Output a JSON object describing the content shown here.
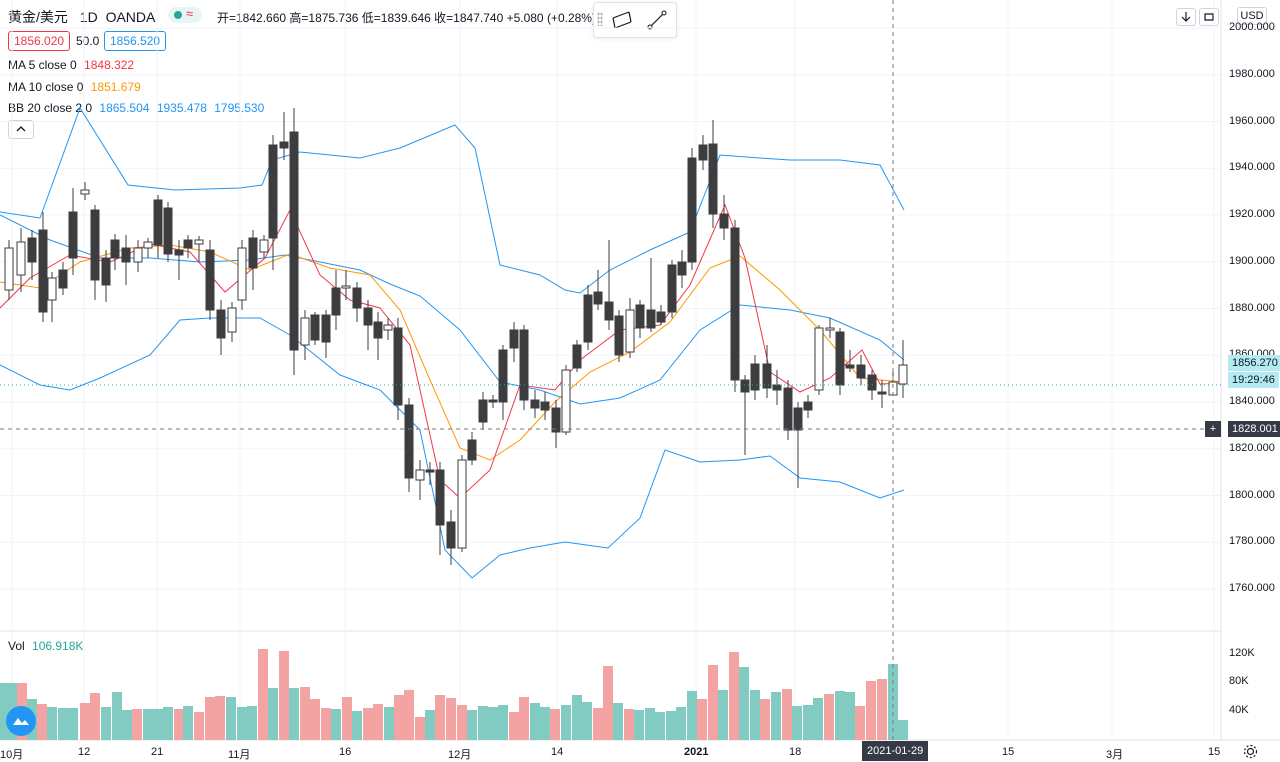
{
  "header": {
    "symbol": "黄金/美元",
    "interval": "1D",
    "exchange": "OANDA",
    "ohlc": "开=1842.660 高=1875.736 低=1839.646 收=1847.740 +5.080 (+0.28%)"
  },
  "quote": {
    "bid": "1856.020",
    "spread": "50.0",
    "ask": "1856.520"
  },
  "indicators": {
    "ma5_label": "MA 5 close 0",
    "ma5_value": "1848.322",
    "ma10_label": "MA 10 close 0",
    "ma10_value": "1851.679",
    "bb_label": "BB 20 close 2 0",
    "bb_mid": "1865.504",
    "bb_upper": "1935.478",
    "bb_lower": "1795.530"
  },
  "volume": {
    "label": "Vol",
    "value": "106.918K"
  },
  "price_axis": {
    "currency": "USD",
    "ticks": [
      "2000.000",
      "1980.000",
      "1960.000",
      "1940.000",
      "1920.000",
      "1900.000",
      "1880.000",
      "1860.000",
      "1840.000",
      "1820.000",
      "1800.000",
      "1780.000",
      "1760.000"
    ],
    "last_price": "1856.270",
    "countdown": "19:29:46",
    "crosshair_price": "1828.001",
    "crosshair_plus": "+"
  },
  "volume_axis": {
    "ticks": [
      "120K",
      "80K",
      "40K"
    ]
  },
  "time_axis": {
    "labels": [
      "10月",
      "12",
      "21",
      "11月",
      "16",
      "12月",
      "14",
      "2021",
      "18",
      "15",
      "3月",
      "15"
    ],
    "crosshair_date": "2021-01-29"
  },
  "colors": {
    "up_volume": "#82cbc2",
    "down_volume": "#f4a3a3",
    "bb": "#2196f3",
    "ma5": "#f23645",
    "ma10": "#ff9800",
    "candle_down": "#3d3d40"
  },
  "icons": {
    "collapse": "chevron-up-icon",
    "download": "arrow-down-icon",
    "refresh": "refresh-icon",
    "settings": "gear-icon",
    "logo": "cloud-logo-icon",
    "drawing_tool": "parallel-channel-icon",
    "line_tool": "trend-line-icon"
  }
}
